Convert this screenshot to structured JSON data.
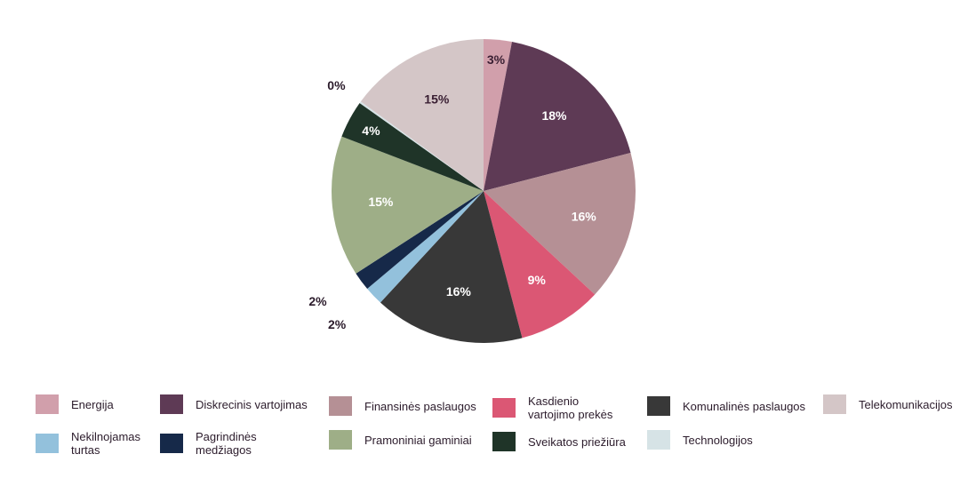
{
  "chart_data": {
    "type": "pie",
    "title": "",
    "start_angle_deg": 0,
    "direction": "clockwise",
    "slices": [
      {
        "label": "Energija",
        "value": 3,
        "display": "3%",
        "color": "#d19fab",
        "label_color": "#3a1f33"
      },
      {
        "label": "Diskrecinis vartojimas",
        "value": 18,
        "display": "18%",
        "color": "#5e3a55",
        "label_color": "#ffffff"
      },
      {
        "label": "Finansinės paslaugos",
        "value": 16,
        "display": "16%",
        "color": "#b59095",
        "label_color": "#ffffff"
      },
      {
        "label": "Kasdienio vartojimo prekės",
        "value": 9,
        "display": "9%",
        "color": "#db5774",
        "label_color": "#ffffff"
      },
      {
        "label": "Komunalinės paslaugos",
        "value": 16,
        "display": "16%",
        "color": "#383838",
        "label_color": "#ffffff"
      },
      {
        "label": "Nekilnojamas turtas",
        "value": 2,
        "display": "2%",
        "color": "#93c1dc",
        "label_color": "#2b1b2b"
      },
      {
        "label": "Pagrindinės medžiagos",
        "value": 2,
        "display": "2%",
        "color": "#162949",
        "label_color": "#2b1b2b"
      },
      {
        "label": "Pramoniniai gaminiai",
        "value": 15,
        "display": "15%",
        "color": "#9eae87",
        "label_color": "#ffffff"
      },
      {
        "label": "Sveikatos priežiūra",
        "value": 4,
        "display": "4%",
        "color": "#1f3428",
        "label_color": "#ffffff"
      },
      {
        "label": "Technologijos",
        "value": 0.2,
        "display": "0%",
        "color": "#d6e3e6",
        "label_color": "#2b1b2b"
      },
      {
        "label": "Telekomunikacijos",
        "value": 15,
        "display": "15%",
        "color": "#d4c6c7",
        "label_color": "#3a1f33"
      }
    ],
    "legend_placement": "bottom"
  },
  "legend": {
    "items": [
      {
        "label": "Energija",
        "color": "#d19fab"
      },
      {
        "label": "Diskrecinis vartojimas",
        "color": "#5e3a55"
      },
      {
        "label": "Finansinės paslaugos",
        "color": "#b59095"
      },
      {
        "label": "Kasdienio vartojimo prekės",
        "color": "#db5774"
      },
      {
        "label": "Komunalinės paslaugos",
        "color": "#383838"
      },
      {
        "label": "Telekomunikacijos",
        "color": "#d4c6c7"
      },
      {
        "label": "Nekilnojamas turtas",
        "color": "#93c1dc"
      },
      {
        "label": "Pagrindinės medžiagos",
        "color": "#162949"
      },
      {
        "label": "Pramoniniai gaminiai",
        "color": "#9eae87"
      },
      {
        "label": "Sveikatos priežiūra",
        "color": "#1f3428"
      },
      {
        "label": "Technologijos",
        "color": "#d6e3e6"
      }
    ]
  }
}
